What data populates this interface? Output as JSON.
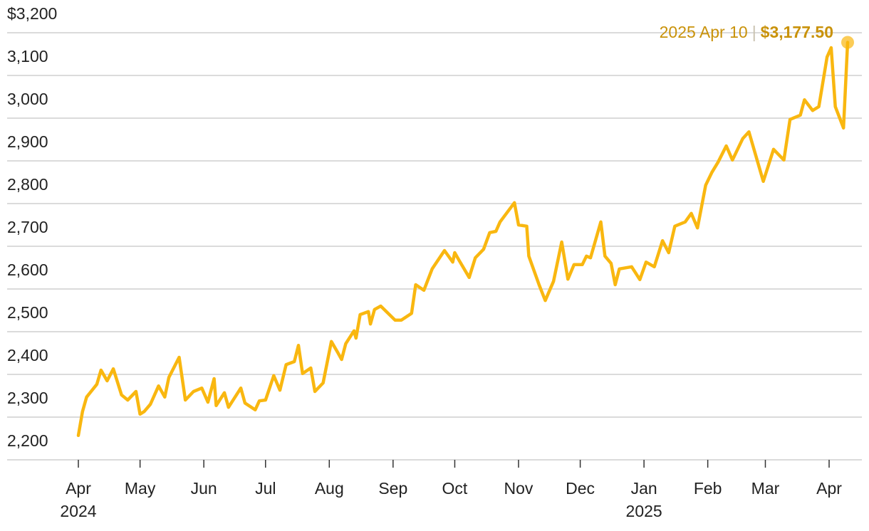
{
  "chart_data": {
    "type": "line",
    "x": [
      "2024-04-01",
      "2024-04-03",
      "2024-04-05",
      "2024-04-10",
      "2024-04-12",
      "2024-04-15",
      "2024-04-18",
      "2024-04-22",
      "2024-04-25",
      "2024-04-29",
      "2024-05-01",
      "2024-05-03",
      "2024-05-06",
      "2024-05-10",
      "2024-05-13",
      "2024-05-15",
      "2024-05-20",
      "2024-05-23",
      "2024-05-27",
      "2024-05-31",
      "2024-06-03",
      "2024-06-06",
      "2024-06-07",
      "2024-06-11",
      "2024-06-13",
      "2024-06-19",
      "2024-06-21",
      "2024-06-26",
      "2024-06-28",
      "2024-07-01",
      "2024-07-05",
      "2024-07-08",
      "2024-07-11",
      "2024-07-15",
      "2024-07-17",
      "2024-07-19",
      "2024-07-23",
      "2024-07-25",
      "2024-07-29",
      "2024-08-02",
      "2024-08-05",
      "2024-08-07",
      "2024-08-09",
      "2024-08-13",
      "2024-08-14",
      "2024-08-16",
      "2024-08-20",
      "2024-08-21",
      "2024-08-23",
      "2024-08-26",
      "2024-09-02",
      "2024-09-05",
      "2024-09-10",
      "2024-09-12",
      "2024-09-16",
      "2024-09-20",
      "2024-09-26",
      "2024-09-30",
      "2024-10-01",
      "2024-10-03",
      "2024-10-08",
      "2024-10-11",
      "2024-10-15",
      "2024-10-18",
      "2024-10-21",
      "2024-10-23",
      "2024-10-30",
      "2024-11-01",
      "2024-11-05",
      "2024-11-06",
      "2024-11-11",
      "2024-11-14",
      "2024-11-18",
      "2024-11-22",
      "2024-11-25",
      "2024-11-28",
      "2024-12-02",
      "2024-12-04",
      "2024-12-06",
      "2024-12-11",
      "2024-12-13",
      "2024-12-16",
      "2024-12-18",
      "2024-12-20",
      "2024-12-26",
      "2024-12-30",
      "2025-01-02",
      "2025-01-06",
      "2025-01-10",
      "2025-01-13",
      "2025-01-16",
      "2025-01-21",
      "2025-01-24",
      "2025-01-27",
      "2025-01-31",
      "2025-02-03",
      "2025-02-06",
      "2025-02-10",
      "2025-02-13",
      "2025-02-18",
      "2025-02-21",
      "2025-02-28",
      "2025-03-05",
      "2025-03-10",
      "2025-03-13",
      "2025-03-18",
      "2025-03-20",
      "2025-03-24",
      "2025-03-27",
      "2025-03-31",
      "2025-04-02",
      "2025-04-04",
      "2025-04-08",
      "2025-04-10"
    ],
    "values": [
      2257,
      2313,
      2347,
      2377,
      2410,
      2385,
      2413,
      2352,
      2340,
      2360,
      2307,
      2313,
      2330,
      2373,
      2347,
      2393,
      2440,
      2340,
      2360,
      2368,
      2335,
      2390,
      2327,
      2357,
      2323,
      2368,
      2333,
      2317,
      2338,
      2340,
      2397,
      2363,
      2423,
      2430,
      2468,
      2402,
      2415,
      2360,
      2380,
      2477,
      2452,
      2435,
      2472,
      2502,
      2485,
      2540,
      2547,
      2518,
      2552,
      2560,
      2527,
      2527,
      2543,
      2610,
      2597,
      2647,
      2690,
      2663,
      2685,
      2668,
      2627,
      2673,
      2693,
      2732,
      2735,
      2757,
      2802,
      2750,
      2747,
      2677,
      2610,
      2573,
      2618,
      2710,
      2623,
      2657,
      2657,
      2677,
      2673,
      2757,
      2677,
      2660,
      2610,
      2647,
      2652,
      2622,
      2663,
      2652,
      2713,
      2685,
      2747,
      2757,
      2777,
      2743,
      2843,
      2873,
      2897,
      2935,
      2902,
      2952,
      2968,
      2852,
      2927,
      2902,
      2997,
      3007,
      3043,
      3018,
      3027,
      3143,
      3165,
      3027,
      2977,
      3177.5
    ],
    "color": "#f9b710",
    "xlim": [
      "2024-04-01",
      "2025-04-10"
    ],
    "xticks": [
      {
        "value": "2024-04-01",
        "label": "Apr"
      },
      {
        "value": "2024-05-01",
        "label": "May"
      },
      {
        "value": "2024-06-01",
        "label": "Jun"
      },
      {
        "value": "2024-07-01",
        "label": "Jul"
      },
      {
        "value": "2024-08-01",
        "label": "Aug"
      },
      {
        "value": "2024-09-01",
        "label": "Sep"
      },
      {
        "value": "2024-10-01",
        "label": "Oct"
      },
      {
        "value": "2024-11-01",
        "label": "Nov"
      },
      {
        "value": "2024-12-01",
        "label": "Dec"
      },
      {
        "value": "2025-01-01",
        "label": "Jan"
      },
      {
        "value": "2025-02-01",
        "label": "Feb"
      },
      {
        "value": "2025-03-01",
        "label": "Mar"
      },
      {
        "value": "2025-04-01",
        "label": "Apr"
      }
    ],
    "xtick_years": [
      {
        "value": "2024-04-01",
        "label": "2024"
      },
      {
        "value": "2025-01-01",
        "label": "2025"
      }
    ],
    "ylim": [
      2200,
      3200
    ],
    "yticks": [
      {
        "value": 2200,
        "label": "2,200"
      },
      {
        "value": 2300,
        "label": "2,300"
      },
      {
        "value": 2400,
        "label": "2,400"
      },
      {
        "value": 2500,
        "label": "2,500"
      },
      {
        "value": 2600,
        "label": "2,600"
      },
      {
        "value": 2700,
        "label": "2,700"
      },
      {
        "value": 2800,
        "label": "2,800"
      },
      {
        "value": 2900,
        "label": "2,900"
      },
      {
        "value": 3000,
        "label": "3,000"
      },
      {
        "value": 3100,
        "label": "3,100"
      },
      {
        "value": 3200,
        "label": "$3,200"
      }
    ],
    "grid": true,
    "annotation": {
      "date_label": "2025 Apr 10",
      "separator": "|",
      "value_label": "$3,177.50"
    }
  }
}
